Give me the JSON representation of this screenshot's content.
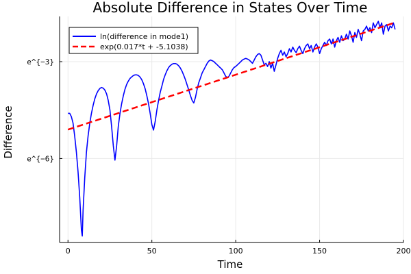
{
  "chart_data": {
    "type": "line",
    "title": "Absolute Difference in States Over Time",
    "xlabel": "Time",
    "ylabel": "Difference",
    "xlim": [
      -5,
      200
    ],
    "ylim": [
      -8.6,
      -1.6
    ],
    "x_ticks": [
      0,
      50,
      100,
      150,
      200
    ],
    "x_tick_labels": [
      "0",
      "50",
      "100",
      "150",
      "200"
    ],
    "y_ticks": [
      -6,
      -3
    ],
    "y_tick_labels": [
      "e^{−6}",
      "e^{−3}"
    ],
    "grid": true,
    "legend_position": "top-left",
    "series": [
      {
        "name": "ln(difference in mode1)",
        "color": "#0000ff",
        "style": "solid",
        "points": [
          [
            0,
            -4.6
          ],
          [
            1,
            -4.6
          ],
          [
            2,
            -4.7
          ],
          [
            3,
            -4.9
          ],
          [
            4,
            -5.3
          ],
          [
            5,
            -5.8
          ],
          [
            6,
            -6.4
          ],
          [
            7,
            -7.2
          ],
          [
            8,
            -8.2
          ],
          [
            8.5,
            -8.4
          ],
          [
            9,
            -7.6
          ],
          [
            10,
            -6.6
          ],
          [
            11,
            -5.8
          ],
          [
            12,
            -5.3
          ],
          [
            13,
            -4.9
          ],
          [
            14,
            -4.6
          ],
          [
            15,
            -4.35
          ],
          [
            16,
            -4.15
          ],
          [
            17,
            -4.0
          ],
          [
            18,
            -3.9
          ],
          [
            19,
            -3.83
          ],
          [
            20,
            -3.8
          ],
          [
            21,
            -3.82
          ],
          [
            22,
            -3.88
          ],
          [
            23,
            -4.0
          ],
          [
            24,
            -4.2
          ],
          [
            25,
            -4.5
          ],
          [
            26,
            -5.0
          ],
          [
            27,
            -5.6
          ],
          [
            28,
            -6.05
          ],
          [
            29,
            -5.6
          ],
          [
            30,
            -5.0
          ],
          [
            31,
            -4.6
          ],
          [
            32,
            -4.3
          ],
          [
            33,
            -4.05
          ],
          [
            34,
            -3.85
          ],
          [
            35,
            -3.7
          ],
          [
            36,
            -3.6
          ],
          [
            37,
            -3.52
          ],
          [
            38,
            -3.47
          ],
          [
            39,
            -3.43
          ],
          [
            40,
            -3.41
          ],
          [
            41,
            -3.41
          ],
          [
            42,
            -3.43
          ],
          [
            43,
            -3.48
          ],
          [
            44,
            -3.56
          ],
          [
            45,
            -3.68
          ],
          [
            46,
            -3.84
          ],
          [
            47,
            -4.05
          ],
          [
            48,
            -4.3
          ],
          [
            49,
            -4.6
          ],
          [
            50,
            -4.95
          ],
          [
            51,
            -5.12
          ],
          [
            52,
            -4.85
          ],
          [
            53,
            -4.5
          ],
          [
            54,
            -4.2
          ],
          [
            55,
            -3.95
          ],
          [
            56,
            -3.75
          ],
          [
            57,
            -3.55
          ],
          [
            58,
            -3.4
          ],
          [
            59,
            -3.28
          ],
          [
            60,
            -3.18
          ],
          [
            61,
            -3.12
          ],
          [
            62,
            -3.08
          ],
          [
            63,
            -3.06
          ],
          [
            64,
            -3.06
          ],
          [
            65,
            -3.08
          ],
          [
            66,
            -3.13
          ],
          [
            67,
            -3.2
          ],
          [
            68,
            -3.3
          ],
          [
            69,
            -3.42
          ],
          [
            70,
            -3.56
          ],
          [
            71,
            -3.72
          ],
          [
            72,
            -3.88
          ],
          [
            73,
            -4.05
          ],
          [
            74,
            -4.2
          ],
          [
            75,
            -4.28
          ],
          [
            76,
            -4.1
          ],
          [
            77,
            -3.85
          ],
          [
            78,
            -3.65
          ],
          [
            79,
            -3.5
          ],
          [
            80,
            -3.35
          ],
          [
            81,
            -3.25
          ],
          [
            82,
            -3.15
          ],
          [
            83,
            -3.05
          ],
          [
            84,
            -2.98
          ],
          [
            85,
            -2.95
          ],
          [
            86,
            -2.97
          ],
          [
            87,
            -3.0
          ],
          [
            88,
            -3.05
          ],
          [
            89,
            -3.1
          ],
          [
            90,
            -3.15
          ],
          [
            91,
            -3.2
          ],
          [
            92,
            -3.25
          ],
          [
            93,
            -3.35
          ],
          [
            94,
            -3.45
          ],
          [
            95,
            -3.5
          ],
          [
            96,
            -3.45
          ],
          [
            97,
            -3.35
          ],
          [
            98,
            -3.25
          ],
          [
            99,
            -3.18
          ],
          [
            100,
            -3.15
          ],
          [
            101,
            -3.1
          ],
          [
            102,
            -3.05
          ],
          [
            103,
            -3.0
          ],
          [
            104,
            -2.95
          ],
          [
            105,
            -2.92
          ],
          [
            106,
            -2.9
          ],
          [
            107,
            -2.92
          ],
          [
            108,
            -2.95
          ],
          [
            109,
            -3.0
          ],
          [
            110,
            -3.05
          ],
          [
            111,
            -2.95
          ],
          [
            112,
            -2.85
          ],
          [
            113,
            -2.78
          ],
          [
            114,
            -2.75
          ],
          [
            115,
            -2.8
          ],
          [
            116,
            -2.95
          ],
          [
            117,
            -3.1
          ],
          [
            118,
            -3.05
          ],
          [
            119,
            -3.15
          ],
          [
            120,
            -3.0
          ],
          [
            121,
            -3.2
          ],
          [
            122,
            -3.05
          ],
          [
            123,
            -3.3
          ],
          [
            124,
            -3.1
          ],
          [
            125,
            -2.9
          ],
          [
            126,
            -2.75
          ],
          [
            127,
            -2.65
          ],
          [
            128,
            -2.8
          ],
          [
            129,
            -2.7
          ],
          [
            130,
            -2.85
          ],
          [
            131,
            -2.75
          ],
          [
            132,
            -2.6
          ],
          [
            133,
            -2.7
          ],
          [
            134,
            -2.55
          ],
          [
            135,
            -2.65
          ],
          [
            136,
            -2.72
          ],
          [
            137,
            -2.6
          ],
          [
            138,
            -2.52
          ],
          [
            139,
            -2.65
          ],
          [
            140,
            -2.75
          ],
          [
            141,
            -2.6
          ],
          [
            142,
            -2.5
          ],
          [
            143,
            -2.45
          ],
          [
            144,
            -2.6
          ],
          [
            145,
            -2.5
          ],
          [
            146,
            -2.7
          ],
          [
            147,
            -2.55
          ],
          [
            148,
            -2.45
          ],
          [
            149,
            -2.55
          ],
          [
            150,
            -2.75
          ],
          [
            151,
            -2.6
          ],
          [
            152,
            -2.5
          ],
          [
            153,
            -2.4
          ],
          [
            154,
            -2.5
          ],
          [
            155,
            -2.35
          ],
          [
            156,
            -2.3
          ],
          [
            157,
            -2.45
          ],
          [
            158,
            -2.3
          ],
          [
            159,
            -2.55
          ],
          [
            160,
            -2.35
          ],
          [
            161,
            -2.25
          ],
          [
            162,
            -2.4
          ],
          [
            163,
            -2.2
          ],
          [
            164,
            -2.35
          ],
          [
            165,
            -2.3
          ],
          [
            166,
            -2.15
          ],
          [
            167,
            -2.3
          ],
          [
            168,
            -2.05
          ],
          [
            169,
            -2.2
          ],
          [
            170,
            -2.4
          ],
          [
            171,
            -2.1
          ],
          [
            172,
            -2.25
          ],
          [
            173,
            -2.0
          ],
          [
            174,
            -2.15
          ],
          [
            175,
            -2.35
          ],
          [
            176,
            -2.05
          ],
          [
            177,
            -2.0
          ],
          [
            178,
            -1.9
          ],
          [
            179,
            -2.05
          ],
          [
            180,
            -1.95
          ],
          [
            181,
            -2.1
          ],
          [
            182,
            -1.8
          ],
          [
            183,
            -1.95
          ],
          [
            184,
            -1.85
          ],
          [
            185,
            -1.75
          ],
          [
            186,
            -1.95
          ],
          [
            187,
            -1.8
          ],
          [
            188,
            -2.15
          ],
          [
            189,
            -1.9
          ],
          [
            190,
            -1.85
          ],
          [
            191,
            -2.05
          ],
          [
            192,
            -1.9
          ],
          [
            193,
            -1.95
          ],
          [
            194,
            -1.8
          ],
          [
            195,
            -2.0
          ]
        ]
      },
      {
        "name": "exp(0.017*t + -5.1038)",
        "color": "#ff0000",
        "style": "dashed",
        "slope": 0.017,
        "intercept": -5.1038,
        "x_range": [
          0,
          195
        ]
      }
    ]
  }
}
